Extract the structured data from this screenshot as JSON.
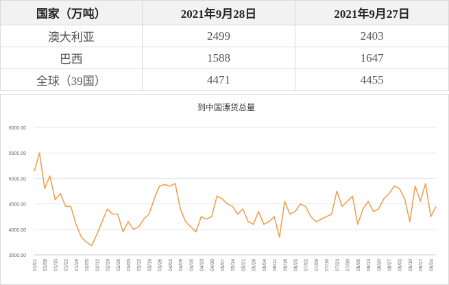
{
  "table": {
    "header": [
      "国家（万吨）",
      "2021年9月28日",
      "2021年9月27日"
    ],
    "rows": [
      [
        "澳大利亚",
        "2499",
        "2403"
      ],
      [
        "巴西",
        "1588",
        "1647"
      ],
      [
        "全球（39国）",
        "4471",
        "4455"
      ]
    ]
  },
  "chart_data": {
    "type": "line",
    "title": "到中国漂货总量",
    "categories": [
      "01/01",
      null,
      "01/08",
      null,
      "01/15",
      null,
      "01/22",
      null,
      "01/29",
      null,
      "02/05",
      null,
      "02/12",
      null,
      "02/19",
      null,
      "02/26",
      null,
      "03/05",
      null,
      "03/12",
      null,
      "03/19",
      null,
      "03/26",
      null,
      "04/02",
      null,
      "04/09",
      null,
      "04/16",
      null,
      "04/23",
      null,
      "04/30",
      null,
      "05/07",
      null,
      "05/14",
      null,
      "05/21",
      null,
      "05/28",
      null,
      "06/04",
      null,
      "06/11",
      null,
      "06/18",
      null,
      "06/25",
      null,
      "07/02",
      null,
      "07/09",
      null,
      "07/16",
      null,
      "07/23",
      null,
      "07/30",
      null,
      "08/06",
      null,
      "08/13",
      null,
      "08/20",
      null,
      "08/27",
      null,
      "09/03",
      null,
      "09/10",
      null,
      "09/17",
      null,
      "09/24",
      null
    ],
    "series": [
      {
        "name": "到中国漂货总量",
        "color": "#f0a050",
        "values": [
          5140,
          5500,
          4800,
          5050,
          4580,
          4700,
          4450,
          4450,
          4100,
          3850,
          3750,
          3680,
          3900,
          4150,
          4400,
          4300,
          4300,
          3950,
          4150,
          4000,
          4050,
          4200,
          4300,
          4600,
          4850,
          4880,
          4850,
          4900,
          4400,
          4150,
          4050,
          3950,
          4250,
          4200,
          4250,
          4650,
          4600,
          4500,
          4450,
          4300,
          4400,
          4150,
          4100,
          4350,
          4100,
          4150,
          4250,
          3850,
          4550,
          4300,
          4350,
          4500,
          4450,
          4250,
          4150,
          4200,
          4250,
          4300,
          4750,
          4450,
          4550,
          4650,
          4100,
          4400,
          4550,
          4350,
          4400,
          4600,
          4700,
          4850,
          4800,
          4600,
          4150,
          4850,
          4550,
          4900,
          4250,
          4450
        ]
      }
    ],
    "ylim": [
      3500,
      6000
    ],
    "yticks": [
      {
        "value": 3500,
        "label": "3500.00"
      },
      {
        "value": 4000,
        "label": "4000.00"
      },
      {
        "value": 4500,
        "label": "4500.00"
      },
      {
        "value": 5000,
        "label": "5000.00"
      },
      {
        "value": 5500,
        "label": "5500.00"
      },
      {
        "value": 6000,
        "label": "6000.00"
      }
    ],
    "grid": true
  }
}
